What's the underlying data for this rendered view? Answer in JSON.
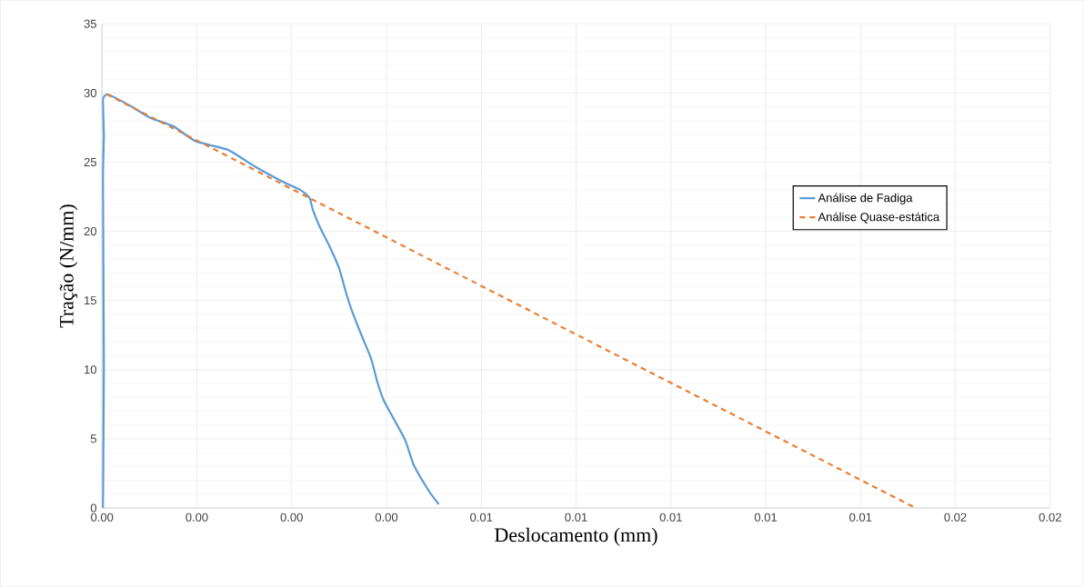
{
  "chart_data": {
    "type": "line",
    "xlabel": "Deslocamento  (mm)",
    "ylabel": "Tração  (N/mm)",
    "xlim": [
      0,
      0.0166667
    ],
    "ylim": [
      0,
      35
    ],
    "xticks": [
      {
        "value": 0,
        "label": "0.00"
      },
      {
        "value": 0.0016667,
        "label": "0.00"
      },
      {
        "value": 0.0033333,
        "label": "0.00"
      },
      {
        "value": 0.005,
        "label": "0.00"
      },
      {
        "value": 0.0066667,
        "label": "0.01"
      },
      {
        "value": 0.0083333,
        "label": "0.01"
      },
      {
        "value": 0.01,
        "label": "0.01"
      },
      {
        "value": 0.0116667,
        "label": "0.01"
      },
      {
        "value": 0.0133333,
        "label": "0.01"
      },
      {
        "value": 0.015,
        "label": "0.02"
      },
      {
        "value": 0.0166667,
        "label": "0.02"
      }
    ],
    "yticks": [
      0,
      5,
      10,
      15,
      20,
      25,
      30,
      35
    ],
    "grid": true,
    "legend": "right",
    "marker": "none",
    "series": [
      {
        "name": "Análise de Fadiga",
        "color": "#5b9bd5",
        "line_style": "solid",
        "x": [
          1.7e-05,
          3.3e-05,
          1.7e-05,
          3.3e-05,
          1.7e-05,
          8.3e-05,
          0.00021,
          0.000525,
          0.00085,
          0.00125,
          0.00165,
          0.00221,
          0.00268,
          0.00317,
          0.00348,
          0.00361,
          0.00366,
          0.00371,
          0.00383,
          0.00399,
          0.00417,
          0.00428,
          0.00438,
          0.00457,
          0.00473,
          0.00484,
          0.00495,
          0.00512,
          0.00533,
          0.00548,
          0.00575,
          0.00592
        ],
        "values": [
          0,
          10.4,
          23.6,
          26.9,
          29.5,
          29.9,
          29.7,
          29.0,
          28.2,
          27.6,
          26.5,
          25.9,
          24.7,
          23.6,
          23.0,
          22.6,
          22.3,
          21.5,
          20.3,
          19.0,
          17.3,
          15.7,
          14.4,
          12.4,
          10.8,
          9.1,
          7.8,
          6.5,
          4.9,
          3.1,
          1.2,
          0.26
        ]
      },
      {
        "name": "Análise Quase-estática",
        "color": "#ed7d31",
        "line_style": "dashed",
        "x": [
          8.3e-05,
          0.0143
        ],
        "values": [
          29.9,
          0
        ]
      }
    ]
  }
}
